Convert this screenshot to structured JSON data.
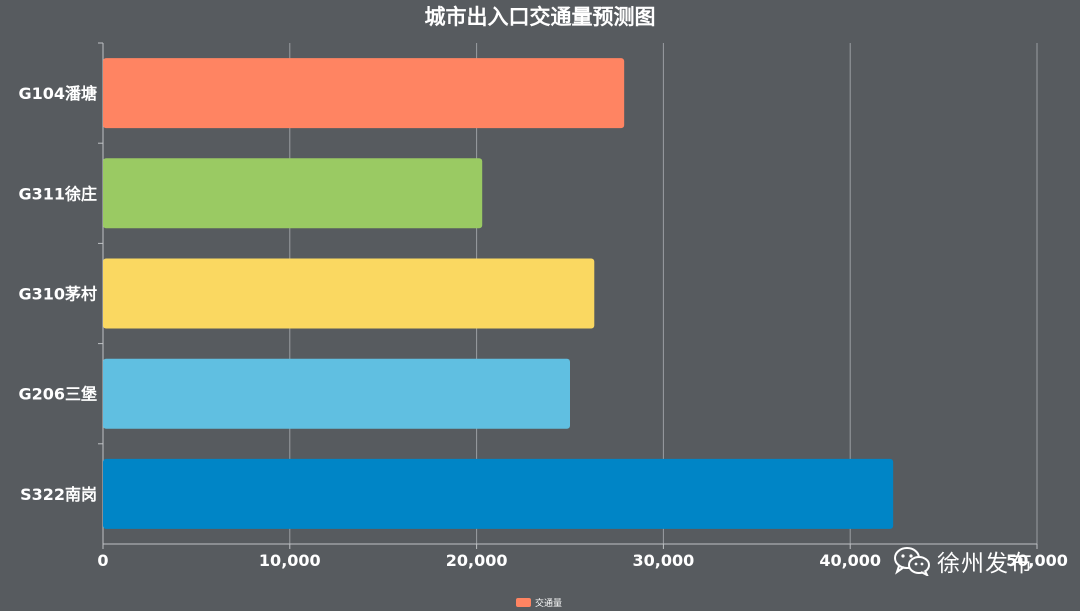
{
  "chart_data": {
    "type": "bar",
    "orientation": "horizontal",
    "title": "城市出入口交通量预测图",
    "categories": [
      "G104潘塘",
      "G311徐庄",
      "G310茅村",
      "G206三堡",
      "S322南岗"
    ],
    "series": [
      {
        "name": "交通量",
        "values": [
          27900,
          20300,
          26300,
          25000,
          42300
        ],
        "colors": [
          "#ff8462",
          "#9aca63",
          "#fad861",
          "#60bfe1",
          "#0085c6"
        ]
      }
    ],
    "xlim": [
      0,
      50000
    ],
    "xticks": [
      0,
      10000,
      20000,
      30000,
      40000,
      50000
    ],
    "xtick_labels": [
      "0",
      "10,000",
      "20,000",
      "30,000",
      "40,000",
      "50,000"
    ],
    "grid": true,
    "legend_position": "bottom-center",
    "legend_color": "#ff8462"
  },
  "watermark": {
    "text": "徐州发布",
    "icon": "wechat-icon"
  }
}
